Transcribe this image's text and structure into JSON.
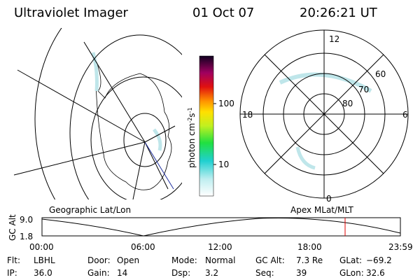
{
  "header": {
    "title": "Ultraviolet Imager",
    "date": "01 Oct 07",
    "time": "20:26:21 UT"
  },
  "colorbar": {
    "label": {
      "base": "photon cm",
      "exp1": "-2",
      "unit2": "s",
      "exp2": "-1"
    },
    "ticks": [
      "100",
      "10"
    ]
  },
  "polar_plot": {
    "mlt_labels": [
      "12",
      "18",
      "6",
      "0"
    ],
    "lat_labels": [
      "60",
      "70",
      "80"
    ]
  },
  "altitude_strip": {
    "left_caption": "Geographic Lat/Lon",
    "right_caption": "Apex MLat/MLT",
    "axis_label": "GC Alt",
    "y_labels": [
      "9.0",
      "1.8"
    ],
    "x_labels": [
      "00:00",
      "06:00",
      "12:00",
      "18:00",
      "23:59"
    ]
  },
  "info": [
    [
      {
        "label": "Flt:",
        "value": "LBHL"
      },
      {
        "label": "Door:",
        "value": "Open"
      },
      {
        "label": "Mode:",
        "value": "Normal"
      },
      {
        "label": "GC Alt:",
        "value": "7.3 Re"
      },
      {
        "label": "GLat:",
        "value": "−69.2"
      }
    ],
    [
      {
        "label": "IP:",
        "value": "36.0"
      },
      {
        "label": "Gain:",
        "value": "14"
      },
      {
        "label": "Dsp:",
        "value": "3.2"
      },
      {
        "label": "Seq:",
        "value": "39"
      },
      {
        "label": "GLon:",
        "value": "32.6"
      }
    ]
  ]
}
